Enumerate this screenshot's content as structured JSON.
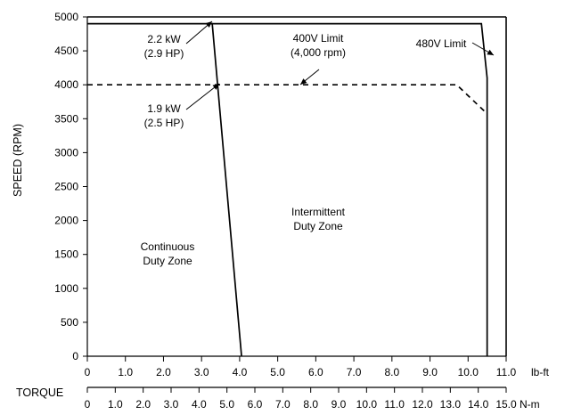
{
  "chart_data": {
    "type": "line",
    "title": "",
    "ylabel": "SPEED (RPM)",
    "xlabel": "TORQUE",
    "ylim": [
      0,
      5000
    ],
    "yticks": [
      0,
      500,
      1000,
      1500,
      2000,
      2500,
      3000,
      3500,
      4000,
      4500,
      5000
    ],
    "x_axes": [
      {
        "unit": "lb-ft",
        "range": [
          0,
          11.0
        ],
        "ticks": [
          {
            "v": 0,
            "label": "0"
          },
          {
            "v": 1,
            "label": "1.0"
          },
          {
            "v": 2,
            "label": "2.0"
          },
          {
            "v": 3,
            "label": "3.0"
          },
          {
            "v": 4,
            "label": "4.0"
          },
          {
            "v": 5,
            "label": "5.0"
          },
          {
            "v": 6,
            "label": "6.0"
          },
          {
            "v": 7,
            "label": "7.0"
          },
          {
            "v": 8,
            "label": "8.0"
          },
          {
            "v": 9,
            "label": "9.0"
          },
          {
            "v": 10,
            "label": "10.0"
          },
          {
            "v": 11,
            "label": "11.0"
          }
        ]
      },
      {
        "unit": "N-m",
        "range": [
          0,
          15.0
        ],
        "ticks": [
          {
            "v": 0,
            "label": "0"
          },
          {
            "v": 1,
            "label": "1.0"
          },
          {
            "v": 2,
            "label": "2.0"
          },
          {
            "v": 3,
            "label": "3.0"
          },
          {
            "v": 4,
            "label": "4.0"
          },
          {
            "v": 5,
            "label": "5.0"
          },
          {
            "v": 6,
            "label": "6.0"
          },
          {
            "v": 7,
            "label": "7.0"
          },
          {
            "v": 8,
            "label": "8.0"
          },
          {
            "v": 9,
            "label": "9.0"
          },
          {
            "v": 10,
            "label": "10.0"
          },
          {
            "v": 11,
            "label": "11.0"
          },
          {
            "v": 12,
            "label": "12.0"
          },
          {
            "v": 13,
            "label": "13.0"
          },
          {
            "v": 14,
            "label": "14.0"
          },
          {
            "v": 15,
            "label": "15.0"
          }
        ]
      }
    ],
    "series": [
      {
        "style": "solid",
        "x_unit": "lb-ft",
        "points": [
          [
            0,
            4900
          ],
          [
            3.28,
            4900
          ],
          [
            4.05,
            0
          ]
        ]
      },
      {
        "style": "solid",
        "x_unit": "lb-ft",
        "points": [
          [
            3.28,
            4900
          ],
          [
            10.35,
            4900
          ],
          [
            10.5,
            4100
          ],
          [
            10.5,
            0
          ]
        ]
      },
      {
        "style": "dashed",
        "x_unit": "lb-ft",
        "points": [
          [
            0,
            4000
          ],
          [
            9.7,
            4000
          ],
          [
            10.45,
            3600
          ]
        ]
      }
    ],
    "annotations": [
      {
        "lines": [
          "2.2 kW",
          "(2.9 HP)"
        ]
      },
      {
        "lines": [
          "1.9 kW",
          "(2.5 HP)"
        ]
      },
      {
        "lines": [
          "400V Limit",
          "(4,000 rpm)"
        ]
      },
      {
        "lines": [
          "480V Limit"
        ]
      },
      {
        "lines": [
          "Continuous",
          "Duty Zone"
        ]
      },
      {
        "lines": [
          "Intermittent",
          "Duty Zone"
        ]
      }
    ],
    "grid": false,
    "legend": "none"
  }
}
